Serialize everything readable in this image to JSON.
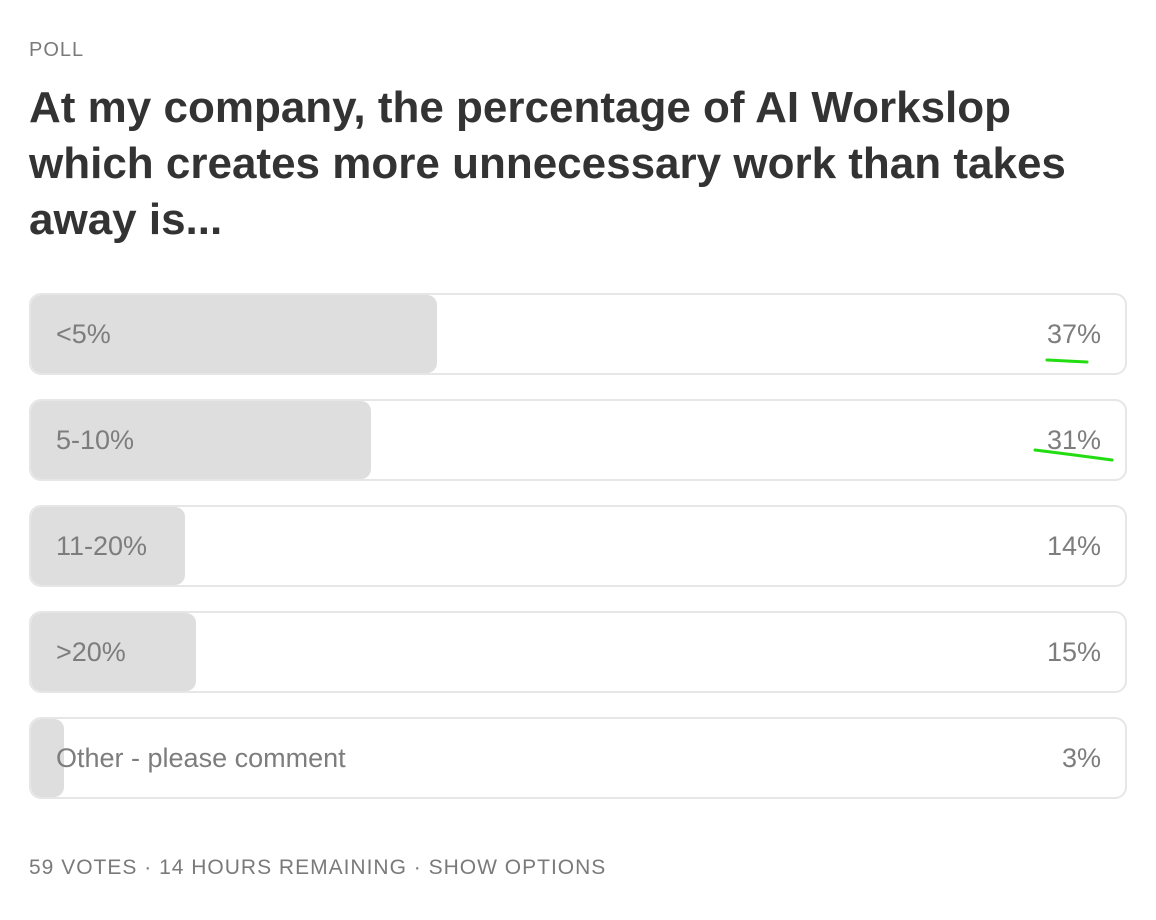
{
  "poll": {
    "label": "POLL",
    "question": "At my company, the percentage of AI Workslop which creates more unnecessary work than takes away is...",
    "options": [
      {
        "label": "<5%",
        "percent_text": "37%",
        "share": 0.37
      },
      {
        "label": "5-10%",
        "percent_text": "31%",
        "share": 0.31
      },
      {
        "label": "11-20%",
        "percent_text": "14%",
        "share": 0.14
      },
      {
        "label": ">20%",
        "percent_text": "15%",
        "share": 0.15
      },
      {
        "label": "Other - please comment",
        "percent_text": "3%",
        "share": 0.03
      }
    ],
    "footer": {
      "votes": "59 VOTES",
      "remaining": "14 HOURS REMAINING",
      "show_options": "SHOW OPTIONS",
      "separator": " · "
    }
  },
  "colors": {
    "fill": "#dedede",
    "border": "#e6e6e6",
    "annotation": "#22dd11"
  }
}
